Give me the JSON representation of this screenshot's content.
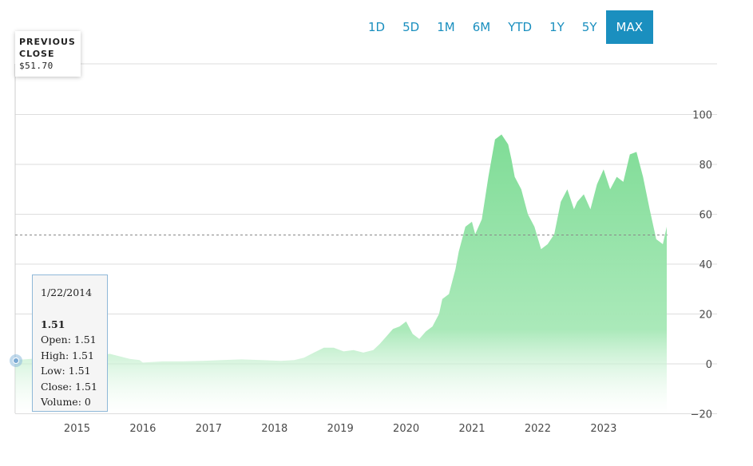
{
  "range_buttons": [
    {
      "label": "1D"
    },
    {
      "label": "5D"
    },
    {
      "label": "1M"
    },
    {
      "label": "6M"
    },
    {
      "label": "YTD"
    },
    {
      "label": "1Y"
    },
    {
      "label": "5Y"
    },
    {
      "label": "MAX",
      "active": true
    }
  ],
  "previous_close": {
    "label_line1": "PREVIOUS",
    "label_line2": "CLOSE",
    "value": "$51.70"
  },
  "tooltip": {
    "date": "1/22/2014",
    "price": "1.51",
    "open": "Open: 1.51",
    "high": "High: 1.51",
    "low": "Low: 1.51",
    "close": "Close: 1.51",
    "volume": "Volume: 0"
  },
  "colors": {
    "accent": "#1a8fbf",
    "area_fill": "#8de0a2",
    "grid": "#dddddd"
  },
  "chart_data": {
    "type": "area",
    "title": "",
    "xlabel": "",
    "ylabel": "",
    "y_ticks": [
      100,
      80,
      60,
      40,
      20,
      0,
      -20
    ],
    "x_ticks": [
      "2015",
      "2016",
      "2017",
      "2018",
      "2019",
      "2020",
      "2021",
      "2022",
      "2023"
    ],
    "ylim": [
      -20,
      120
    ],
    "xlim": [
      2014.05,
      2024.0
    ],
    "reference_line": {
      "label": "Previous close",
      "value": 51.7
    },
    "grid": true,
    "series": [
      {
        "x": [
          2014.06,
          2014.3,
          2014.6,
          2014.9,
          2015.2,
          2015.5,
          2015.65,
          2015.8,
          2015.95,
          2016.0,
          2016.3,
          2016.6,
          2016.9,
          2017.2,
          2017.5,
          2017.8,
          2018.1,
          2018.3,
          2018.45,
          2018.6,
          2018.75,
          2018.9,
          2019.05,
          2019.2,
          2019.35,
          2019.5,
          2019.6,
          2019.7,
          2019.8,
          2019.9,
          2020.0,
          2020.1,
          2020.2,
          2020.3,
          2020.4,
          2020.5,
          2020.55,
          2020.65,
          2020.75,
          2020.8,
          2020.9,
          2021.0,
          2021.05,
          2021.15,
          2021.25,
          2021.35,
          2021.45,
          2021.55,
          2021.6,
          2021.65,
          2021.75,
          2021.85,
          2021.95,
          2022.05,
          2022.15,
          2022.25,
          2022.35,
          2022.45,
          2022.55,
          2022.6,
          2022.7,
          2022.8,
          2022.9,
          2023.0,
          2023.1,
          2023.2,
          2023.3,
          2023.4,
          2023.5,
          2023.6,
          2023.7,
          2023.8,
          2023.9,
          2023.96
        ],
        "y": [
          1.51,
          2,
          2.5,
          3,
          3.5,
          4,
          3,
          2,
          1.5,
          0.5,
          1,
          1,
          1.2,
          1.5,
          1.8,
          1.5,
          1.2,
          1.5,
          2.5,
          4.5,
          6.5,
          6.5,
          5,
          5.5,
          4.5,
          5.5,
          8,
          11,
          14,
          15,
          17,
          12,
          10,
          13,
          15,
          20,
          26,
          28,
          38,
          45,
          55,
          57,
          52,
          58,
          75,
          90,
          92,
          88,
          82,
          75,
          70,
          60,
          55,
          46,
          48,
          52,
          65,
          70,
          62,
          65,
          68,
          62,
          72,
          78,
          70,
          75,
          73,
          84,
          85,
          75,
          62,
          50,
          48,
          55
        ]
      }
    ]
  }
}
